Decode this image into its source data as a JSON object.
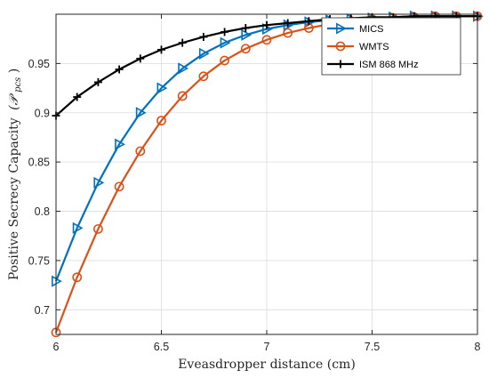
{
  "chart_data": {
    "type": "line",
    "xlabel": "Eveasdropper distance (cm)",
    "ylabel": "Positive Secrecy Capacity",
    "ylabel_math": "(𝒫",
    "ylabel_sub": "pcs",
    "ylabel_close": ")",
    "xlim": [
      6,
      8
    ],
    "ylim": [
      0.675,
      1.0
    ],
    "xticks": [
      6,
      6.5,
      7,
      7.5,
      8
    ],
    "xtick_labels": [
      "6",
      "6.5",
      "7",
      "7.5",
      "8"
    ],
    "yticks": [
      0.7,
      0.75,
      0.8,
      0.85,
      0.9,
      0.95
    ],
    "ytick_labels": [
      "0.7",
      "0.75",
      "0.8",
      "0.85",
      "0.9",
      "0.95"
    ],
    "grid": true,
    "legend_position": "top-right",
    "x": [
      6.0,
      6.1,
      6.2,
      6.3,
      6.4,
      6.5,
      6.6,
      6.7,
      6.8,
      6.9,
      7.0,
      7.1,
      7.2,
      7.3,
      7.4,
      7.5,
      7.6,
      7.7,
      7.8,
      7.9,
      8.0
    ],
    "series": [
      {
        "name": "MICS",
        "color": "#0072BD",
        "marker": "triangle-right",
        "values": [
          0.729,
          0.783,
          0.829,
          0.868,
          0.9,
          0.925,
          0.945,
          0.96,
          0.971,
          0.979,
          0.985,
          0.989,
          0.992,
          0.994,
          0.995,
          0.996,
          0.997,
          0.998,
          0.998,
          0.998,
          0.998
        ]
      },
      {
        "name": "WMTS",
        "color": "#D95319",
        "marker": "circle",
        "values": [
          0.677,
          0.733,
          0.782,
          0.825,
          0.861,
          0.892,
          0.917,
          0.937,
          0.953,
          0.965,
          0.974,
          0.981,
          0.986,
          0.99,
          0.993,
          0.995,
          0.996,
          0.997,
          0.998,
          0.998,
          0.998
        ]
      },
      {
        "name": "ISM 868 MHz",
        "color": "#000000",
        "marker": "plus",
        "values": [
          0.897,
          0.916,
          0.931,
          0.944,
          0.955,
          0.964,
          0.971,
          0.977,
          0.982,
          0.986,
          0.989,
          0.991,
          0.993,
          0.995,
          0.996,
          0.997,
          0.997,
          0.998,
          0.998,
          0.998,
          0.998
        ]
      }
    ]
  }
}
